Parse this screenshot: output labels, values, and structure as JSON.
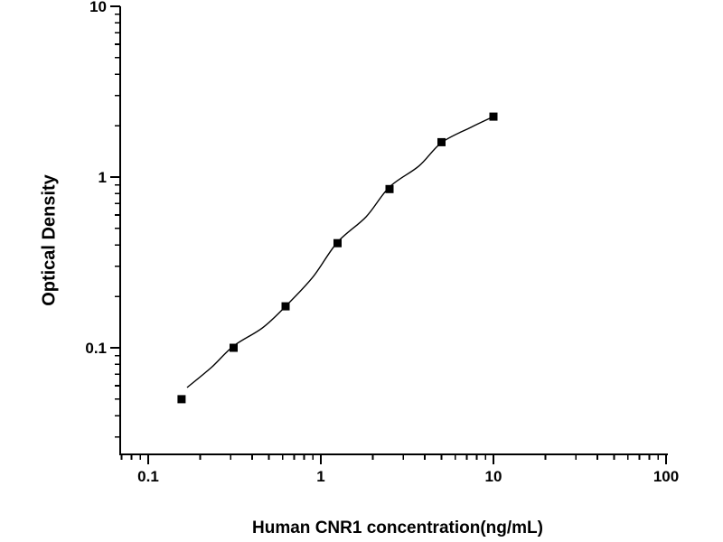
{
  "figure": {
    "background": "#ffffff",
    "axis_color": "#000000",
    "marker_color": "#000000",
    "curve_color": "#000000"
  },
  "chart_data": {
    "type": "scatter",
    "title": "",
    "xlabel": "Human CNR1 concentration(ng/mL)",
    "ylabel": "Optical Density",
    "x_scale": "log",
    "y_scale": "log",
    "xlim": [
      0.069,
      103
    ],
    "ylim": [
      0.0236,
      10
    ],
    "grid": false,
    "legend": null,
    "x_major_ticks": [
      {
        "value": 0.1,
        "label": "0.1"
      },
      {
        "value": 1,
        "label": "1"
      },
      {
        "value": 10,
        "label": "10"
      },
      {
        "value": 100,
        "label": "100"
      }
    ],
    "y_major_ticks": [
      {
        "value": 0.1,
        "label": "0.1"
      },
      {
        "value": 1,
        "label": "1"
      },
      {
        "value": 10,
        "label": "10"
      }
    ],
    "series": [
      {
        "name": "standard-points",
        "marker": "filled-square",
        "x": [
          0.156,
          0.3125,
          0.625,
          1.25,
          2.5,
          5,
          10
        ],
        "y": [
          0.05,
          0.1,
          0.175,
          0.41,
          0.85,
          1.6,
          2.26
        ]
      }
    ],
    "fit_curve": {
      "name": "fitted-standard-curve",
      "points": [
        [
          0.168,
          0.0585
        ],
        [
          0.233,
          0.077
        ],
        [
          0.3125,
          0.1025
        ],
        [
          0.46,
          0.131
        ],
        [
          0.625,
          0.175
        ],
        [
          0.9,
          0.26
        ],
        [
          1.25,
          0.416
        ],
        [
          1.83,
          0.585
        ],
        [
          2.5,
          0.875
        ],
        [
          3.7,
          1.16
        ],
        [
          5,
          1.59
        ],
        [
          7.4,
          1.955
        ],
        [
          10,
          2.26
        ]
      ]
    }
  }
}
